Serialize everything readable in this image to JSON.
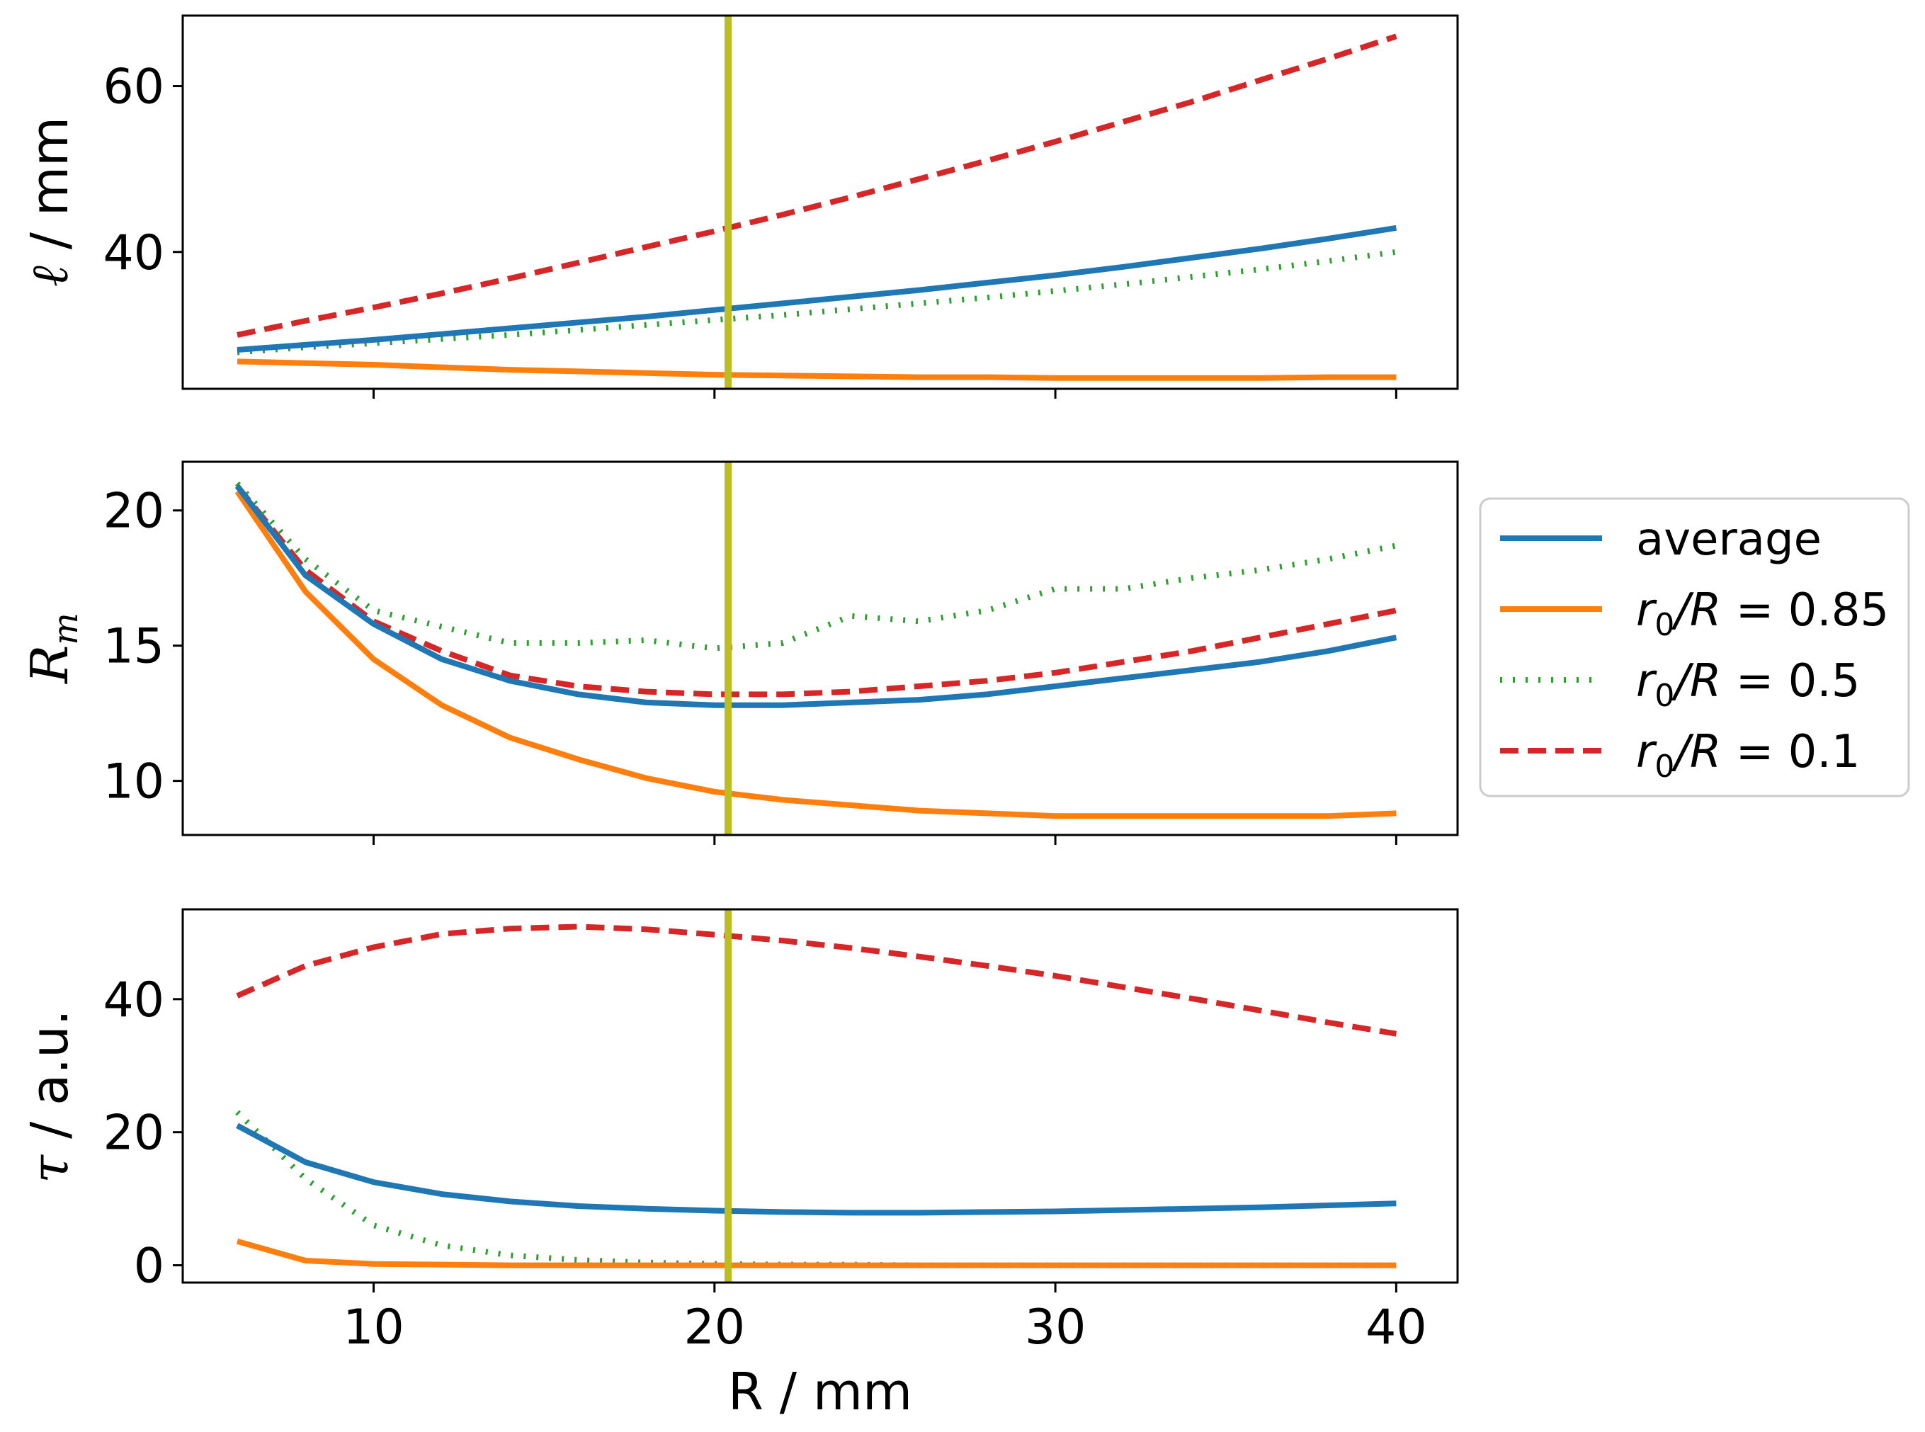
{
  "chart_data": [
    {
      "type": "line",
      "panel": "top",
      "ylabel": "ℓ / mm",
      "xlim": [
        4.4,
        41.8
      ],
      "ylim": [
        23.5,
        68.5
      ],
      "yticks": [
        40,
        60
      ],
      "ytick_labels": [
        "40",
        "60"
      ],
      "xticks": [
        10,
        20,
        30,
        40
      ],
      "series": [
        {
          "name": "average",
          "x": [
            6,
            8,
            10,
            12,
            14,
            16,
            18,
            20,
            22,
            24,
            26,
            28,
            30,
            32,
            34,
            36,
            38,
            40
          ],
          "values": [
            28.2,
            28.8,
            29.4,
            30.1,
            30.8,
            31.5,
            32.2,
            33.0,
            33.8,
            34.6,
            35.4,
            36.3,
            37.2,
            38.2,
            39.3,
            40.4,
            41.6,
            42.9
          ]
        },
        {
          "name": "r0/R = 0.85",
          "x": [
            6,
            8,
            10,
            12,
            14,
            16,
            18,
            20,
            22,
            24,
            26,
            28,
            30,
            32,
            34,
            36,
            38,
            40
          ],
          "values": [
            26.8,
            26.6,
            26.4,
            26.1,
            25.8,
            25.6,
            25.4,
            25.2,
            25.1,
            25.0,
            24.9,
            24.9,
            24.8,
            24.8,
            24.8,
            24.8,
            24.9,
            24.9
          ]
        },
        {
          "name": "r0/R = 0.5",
          "x": [
            6,
            8,
            10,
            12,
            14,
            16,
            18,
            20,
            22,
            24,
            26,
            28,
            30,
            32,
            34,
            36,
            38,
            40
          ],
          "values": [
            27.9,
            28.5,
            29.0,
            29.5,
            30.0,
            30.6,
            31.2,
            31.8,
            32.4,
            33.1,
            33.8,
            34.5,
            35.3,
            36.1,
            37.0,
            37.9,
            38.9,
            40.0
          ]
        },
        {
          "name": "r0/R = 0.1",
          "x": [
            6,
            8,
            10,
            12,
            14,
            16,
            18,
            20,
            22,
            24,
            26,
            28,
            30,
            32,
            34,
            36,
            38,
            40
          ],
          "values": [
            30.0,
            31.7,
            33.3,
            35.0,
            36.8,
            38.7,
            40.6,
            42.5,
            44.5,
            46.6,
            48.8,
            51.0,
            53.3,
            55.7,
            58.1,
            60.7,
            63.3,
            66.0
          ]
        }
      ]
    },
    {
      "type": "line",
      "panel": "middle",
      "ylabel": "R_m",
      "xlim": [
        4.4,
        41.8
      ],
      "ylim": [
        8.0,
        21.8
      ],
      "yticks": [
        10,
        15,
        20
      ],
      "ytick_labels": [
        "10",
        "15",
        "20"
      ],
      "xticks": [
        10,
        20,
        30,
        40
      ],
      "series": [
        {
          "name": "average",
          "x": [
            6,
            8,
            10,
            12,
            14,
            16,
            18,
            20,
            22,
            24,
            26,
            28,
            30,
            32,
            34,
            36,
            38,
            40
          ],
          "values": [
            20.9,
            17.6,
            15.8,
            14.5,
            13.7,
            13.2,
            12.9,
            12.8,
            12.8,
            12.9,
            13.0,
            13.2,
            13.5,
            13.8,
            14.1,
            14.4,
            14.8,
            15.3
          ]
        },
        {
          "name": "r0/R = 0.85",
          "x": [
            6,
            8,
            10,
            12,
            14,
            16,
            18,
            20,
            22,
            24,
            26,
            28,
            30,
            32,
            34,
            36,
            38,
            40
          ],
          "values": [
            20.7,
            17.0,
            14.5,
            12.8,
            11.6,
            10.8,
            10.1,
            9.6,
            9.3,
            9.1,
            8.9,
            8.8,
            8.7,
            8.7,
            8.7,
            8.7,
            8.7,
            8.8
          ]
        },
        {
          "name": "r0/R = 0.5",
          "x": [
            6,
            8,
            10,
            12,
            14,
            16,
            18,
            20,
            22,
            24,
            26,
            28,
            30,
            32,
            34,
            36,
            38,
            40
          ],
          "values": [
            21.0,
            18.2,
            16.3,
            15.7,
            15.1,
            15.1,
            15.2,
            14.9,
            15.1,
            16.1,
            15.9,
            16.3,
            17.1,
            17.1,
            17.5,
            17.8,
            18.2,
            18.7
          ]
        },
        {
          "name": "r0/R = 0.1",
          "x": [
            6,
            8,
            10,
            12,
            14,
            16,
            18,
            20,
            22,
            24,
            26,
            28,
            30,
            32,
            34,
            36,
            38,
            40
          ],
          "values": [
            20.9,
            17.8,
            15.9,
            14.8,
            13.9,
            13.5,
            13.3,
            13.2,
            13.2,
            13.3,
            13.5,
            13.7,
            14.0,
            14.4,
            14.8,
            15.3,
            15.8,
            16.3
          ]
        }
      ]
    },
    {
      "type": "line",
      "panel": "bottom",
      "ylabel": "τ / a.u.",
      "xlabel": "R / mm",
      "xlim": [
        4.4,
        41.8
      ],
      "ylim": [
        -2.6,
        53.5
      ],
      "yticks": [
        0,
        20,
        40
      ],
      "ytick_labels": [
        "0",
        "20",
        "40"
      ],
      "xticks": [
        10,
        20,
        30,
        40
      ],
      "xtick_labels": [
        "10",
        "20",
        "30",
        "40"
      ],
      "series": [
        {
          "name": "average",
          "x": [
            6,
            8,
            10,
            12,
            14,
            16,
            18,
            20,
            22,
            24,
            26,
            28,
            30,
            32,
            34,
            36,
            38,
            40
          ],
          "values": [
            21.0,
            15.5,
            12.5,
            10.7,
            9.6,
            8.9,
            8.5,
            8.2,
            8.0,
            7.9,
            7.9,
            8.0,
            8.1,
            8.3,
            8.5,
            8.7,
            9.0,
            9.3
          ]
        },
        {
          "name": "r0/R = 0.85",
          "x": [
            6,
            8,
            10,
            12,
            14,
            16,
            18,
            20,
            22,
            24,
            26,
            28,
            30,
            32,
            34,
            36,
            38,
            40
          ],
          "values": [
            3.6,
            0.7,
            0.2,
            0.1,
            0.0,
            0.0,
            0.0,
            0.0,
            0.0,
            0.0,
            0.0,
            0.0,
            0.0,
            0.0,
            0.0,
            0.0,
            0.0,
            0.0
          ]
        },
        {
          "name": "r0/R = 0.5",
          "x": [
            6,
            8,
            10,
            12,
            14,
            16,
            18,
            20,
            22,
            24,
            26,
            28,
            30,
            32,
            34,
            36,
            38,
            40
          ],
          "values": [
            23.0,
            13.0,
            6.0,
            3.0,
            1.5,
            0.8,
            0.4,
            0.2,
            0.1,
            0.1,
            0.0,
            0.0,
            0.0,
            0.0,
            0.0,
            0.0,
            0.0,
            0.0
          ]
        },
        {
          "name": "r0/R = 0.1",
          "x": [
            6,
            8,
            10,
            12,
            14,
            16,
            18,
            20,
            22,
            24,
            26,
            28,
            30,
            32,
            34,
            36,
            38,
            40
          ],
          "values": [
            40.5,
            45.0,
            47.8,
            49.8,
            50.6,
            50.9,
            50.5,
            49.7,
            48.8,
            47.7,
            46.4,
            45.0,
            43.5,
            41.8,
            40.1,
            38.3,
            36.5,
            34.8
          ]
        }
      ]
    }
  ],
  "vline": {
    "x": 20.4,
    "color": "#bcbd22"
  },
  "colors": {
    "average": "#1f77b4",
    "r0/R = 0.85": "#ff7f0e",
    "r0/R = 0.5": "#2ca02c",
    "r0/R = 0.1": "#d62728"
  },
  "legend": {
    "position": "center-right",
    "entries": [
      {
        "series": "average",
        "label": "average",
        "style": "solid"
      },
      {
        "series": "r0/R = 0.85",
        "label_prefix": "r",
        "label_sub": "0",
        "label_rest": "/R",
        "label_value": " = 0.85",
        "style": "solid"
      },
      {
        "series": "r0/R = 0.5",
        "label_prefix": "r",
        "label_sub": "0",
        "label_rest": "/R",
        "label_value": " = 0.5",
        "style": "dotted"
      },
      {
        "series": "r0/R = 0.1",
        "label_prefix": "r",
        "label_sub": "0",
        "label_rest": "/R",
        "label_value": " = 0.1",
        "style": "dashed"
      }
    ]
  },
  "labels": {
    "top_ylabel_symbol": "ℓ",
    "top_ylabel_unit": " / mm",
    "middle_ylabel_main": "R",
    "middle_ylabel_sub": "m",
    "bottom_ylabel_symbol": "τ",
    "bottom_ylabel_unit": " / a.u.",
    "xlabel": "R / mm"
  }
}
